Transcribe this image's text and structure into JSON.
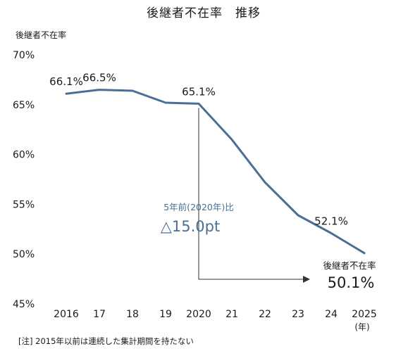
{
  "chart_data": {
    "type": "line",
    "title": "後継者不在率　推移",
    "ylabel": "後継者不在率",
    "x_unit": "(年)",
    "categories": [
      "2016",
      "17",
      "18",
      "19",
      "2020",
      "21",
      "22",
      "23",
      "24",
      "2025"
    ],
    "years": [
      2016,
      2017,
      2018,
      2019,
      2020,
      2021,
      2022,
      2023,
      2024,
      2025
    ],
    "series": [
      {
        "values": [
          66.1,
          66.5,
          66.4,
          65.2,
          65.1,
          61.5,
          57.2,
          53.9,
          52.1,
          50.1
        ],
        "color": "#4a6f96"
      }
    ],
    "ylim": [
      45,
      70
    ],
    "y_ticks": [
      "70%",
      "65%",
      "60%",
      "55%",
      "50%",
      "45%"
    ],
    "y_tick_values": [
      70,
      65,
      60,
      55,
      50,
      45
    ],
    "data_labels": [
      {
        "index": 0,
        "text": "66.1%"
      },
      {
        "index": 1,
        "text": "66.5%"
      },
      {
        "index": 4,
        "text": "65.1%"
      },
      {
        "index": 8,
        "text": "52.1%"
      }
    ],
    "comparison_annotation": {
      "line1": "5年前(2020年)比",
      "line2": "△15.0pt",
      "from_index": 4,
      "to_index": 9
    },
    "end_label": {
      "line1": "後継者不在率",
      "line2": "50.1%"
    },
    "grid": false,
    "legend": "none"
  },
  "footnote": "[注]  2015年以前は連続した集計期間を持たない"
}
